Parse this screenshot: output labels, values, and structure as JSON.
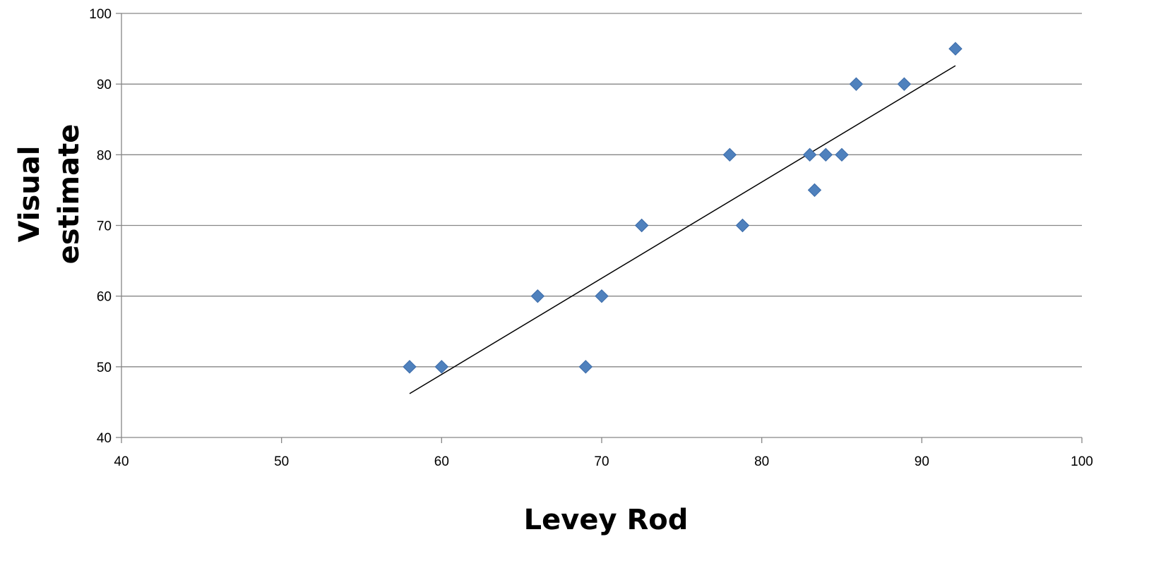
{
  "chart_data": {
    "type": "scatter",
    "title": "",
    "xlabel": "Levey Rod",
    "ylabel_lines": [
      "Visual",
      "estimate"
    ],
    "xlim": [
      40,
      100
    ],
    "ylim": [
      40,
      100
    ],
    "xticks": [
      40,
      50,
      60,
      70,
      80,
      90,
      100
    ],
    "yticks": [
      40,
      50,
      60,
      70,
      80,
      90,
      100
    ],
    "grid": {
      "horizontal": true,
      "vertical": false
    },
    "legend": "none",
    "marker": "diamond",
    "colors": {
      "marker": "#4f81bd",
      "marker_edge": "#3a6aa8",
      "gridline": "#868686",
      "axis": "#868686",
      "trendline": "#000000"
    },
    "series": [
      {
        "points": [
          {
            "x": 58.0,
            "y": 50
          },
          {
            "x": 60.0,
            "y": 50
          },
          {
            "x": 66.0,
            "y": 60
          },
          {
            "x": 69.0,
            "y": 50
          },
          {
            "x": 70.0,
            "y": 60
          },
          {
            "x": 72.5,
            "y": 70
          },
          {
            "x": 78.0,
            "y": 80
          },
          {
            "x": 78.8,
            "y": 70
          },
          {
            "x": 83.0,
            "y": 80
          },
          {
            "x": 83.3,
            "y": 75
          },
          {
            "x": 84.0,
            "y": 80
          },
          {
            "x": 85.0,
            "y": 80
          },
          {
            "x": 85.9,
            "y": 90
          },
          {
            "x": 88.9,
            "y": 90
          },
          {
            "x": 92.1,
            "y": 95
          }
        ]
      }
    ],
    "trendline": {
      "type": "linear",
      "from": {
        "x": 58.0,
        "y": 46.2
      },
      "to": {
        "x": 92.1,
        "y": 92.6
      }
    }
  }
}
